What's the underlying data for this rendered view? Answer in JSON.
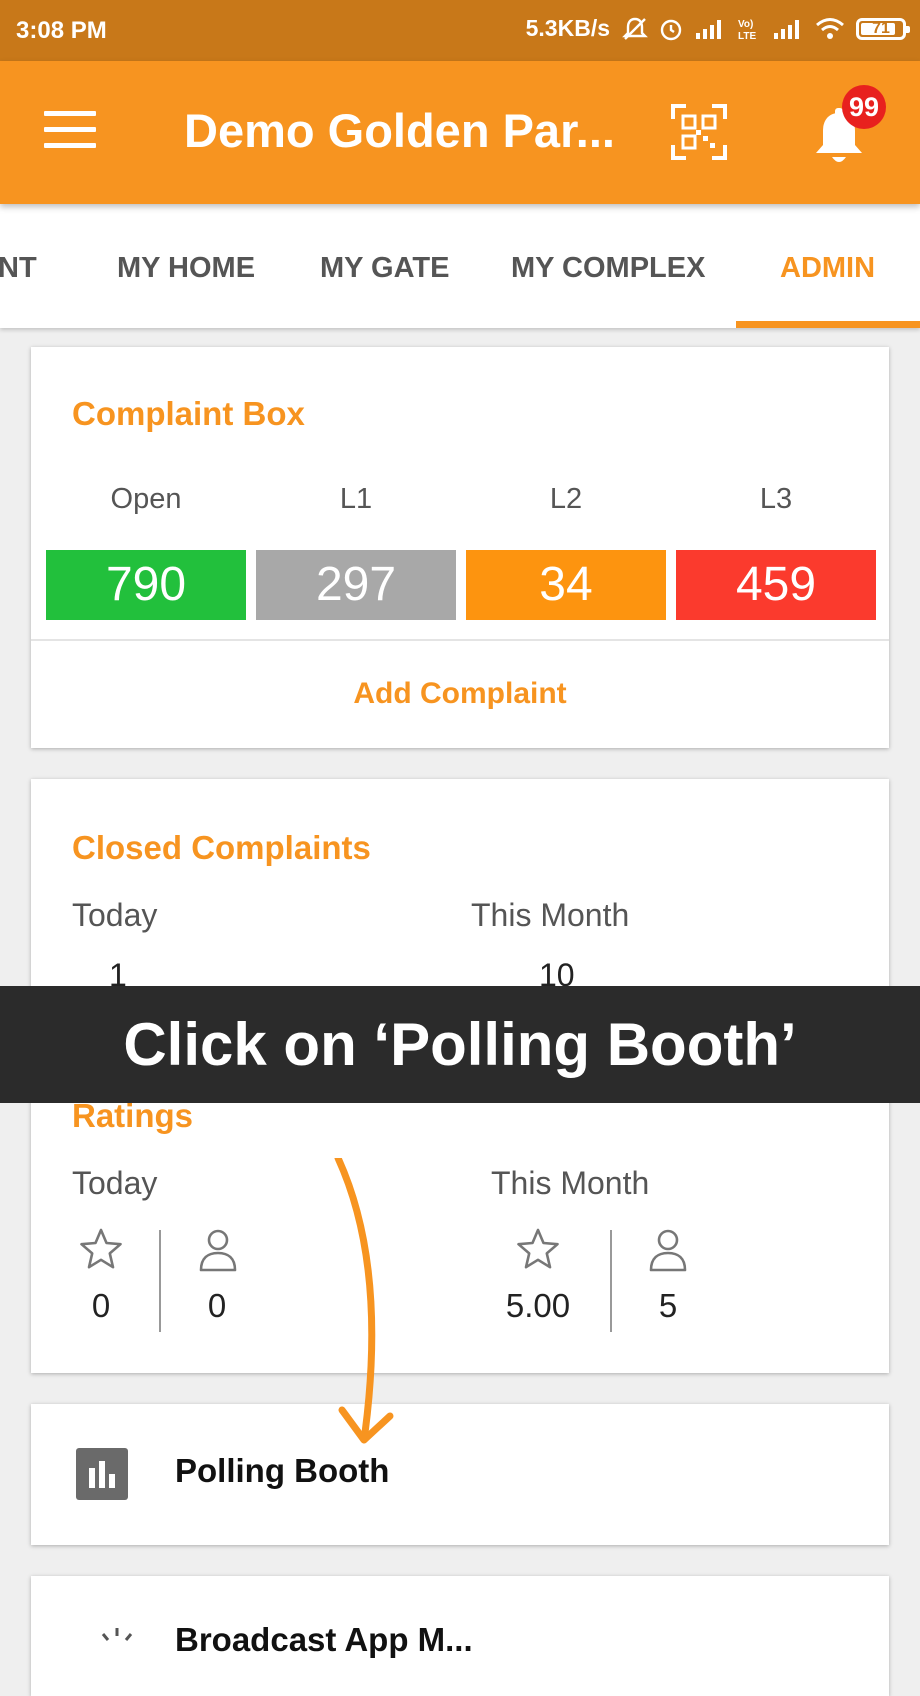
{
  "status_bar": {
    "time": "3:08 PM",
    "net_speed": "5.3KB/s",
    "battery": "71",
    "volte": "Vo)\nLTE"
  },
  "app_bar": {
    "title": "Demo Golden Par...",
    "notification_count": "99"
  },
  "tabs": [
    {
      "label": "NT"
    },
    {
      "label": "MY HOME"
    },
    {
      "label": "MY GATE"
    },
    {
      "label": "MY COMPLEX"
    },
    {
      "label": "ADMIN",
      "active": true
    }
  ],
  "complaint_box": {
    "title": "Complaint Box",
    "columns": [
      {
        "label": "Open",
        "value": "790",
        "color": "#22c03c"
      },
      {
        "label": "L1",
        "value": "297",
        "color": "#a8a8a8"
      },
      {
        "label": "L2",
        "value": "34",
        "color": "#fd940f"
      },
      {
        "label": "L3",
        "value": "459",
        "color": "#fb3a2d"
      }
    ],
    "add_label": "Add Complaint"
  },
  "closed_complaints": {
    "title": "Closed Complaints",
    "today_label": "Today",
    "today_value": "1",
    "month_label": "This Month",
    "month_value": "10"
  },
  "ratings": {
    "title": "Ratings",
    "today_label": "Today",
    "today_rating": "0",
    "today_users": "0",
    "month_label": "This Month",
    "month_rating": "5.00",
    "month_users": "5"
  },
  "overlay": {
    "text": "Click on ‘Polling Booth’"
  },
  "polling_booth": {
    "label": "Polling Booth",
    "icon": "bar-chart-icon"
  },
  "next_item": {
    "label": "Broadcast App M..."
  },
  "colors": {
    "accent": "#f79420",
    "status_bar": "#c87819"
  }
}
